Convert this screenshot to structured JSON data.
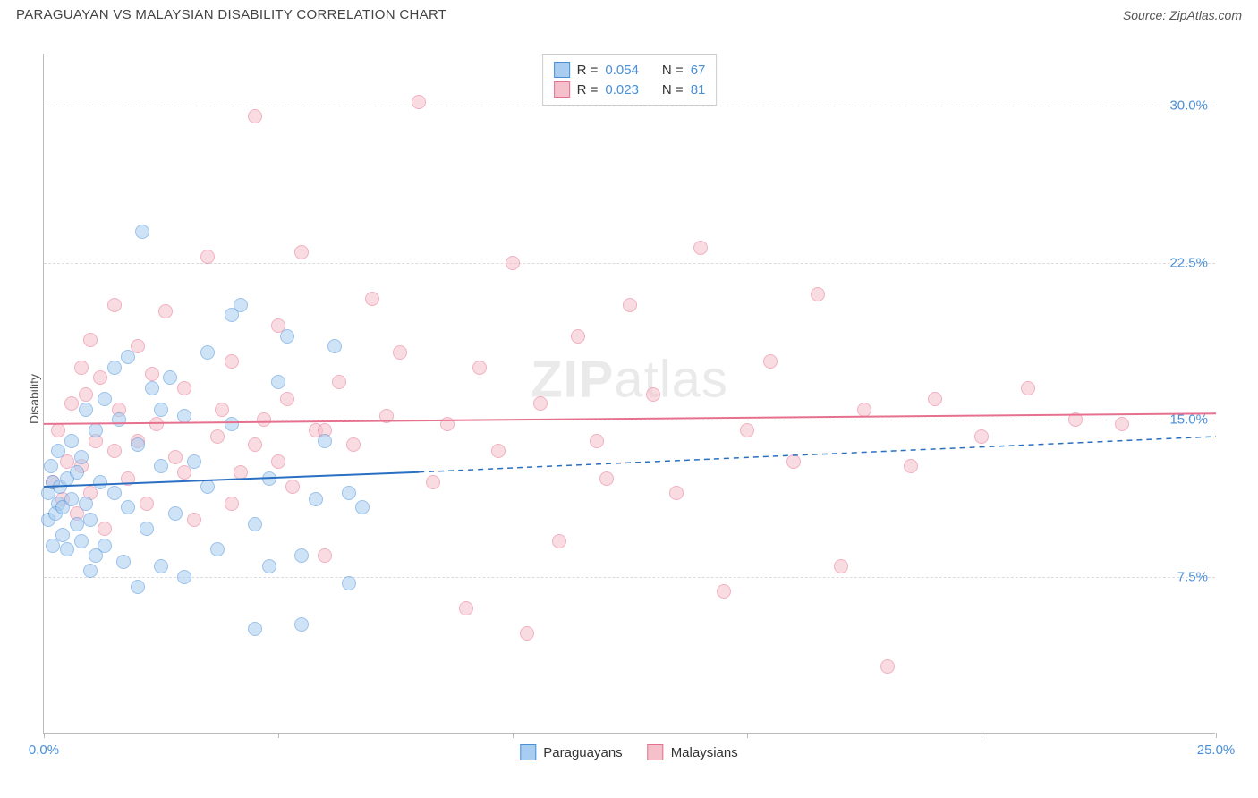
{
  "header": {
    "title": "PARAGUAYAN VS MALAYSIAN DISABILITY CORRELATION CHART",
    "source": "Source: ZipAtlas.com"
  },
  "watermark": {
    "bold": "ZIP",
    "rest": "atlas"
  },
  "chart": {
    "type": "scatter",
    "y_axis_label": "Disability",
    "background_color": "#ffffff",
    "grid_color": "#dddddd",
    "axis_color": "#bbbbbb",
    "tick_label_color": "#4a90d9",
    "xlim": [
      0,
      25
    ],
    "ylim": [
      0,
      32.5
    ],
    "x_ticks": [
      0,
      5,
      10,
      15,
      20,
      25
    ],
    "x_tick_labels": {
      "0": "0.0%",
      "25": "25.0%"
    },
    "y_gridlines": [
      7.5,
      15.0,
      22.5,
      30.0
    ],
    "y_tick_labels": [
      "7.5%",
      "15.0%",
      "22.5%",
      "30.0%"
    ],
    "marker_radius": 8,
    "marker_opacity": 0.55,
    "series": {
      "paraguayans": {
        "label": "Paraguayans",
        "fill": "#a8cdf0",
        "stroke": "#4a90d9",
        "r_value": "0.054",
        "n_value": "67",
        "trend": {
          "solid_x": [
            0,
            8
          ],
          "solid_y": [
            11.8,
            12.5
          ],
          "dashed_to_x": 25,
          "dashed_to_y": 14.2,
          "color": "#2a70c2",
          "width": 2
        },
        "points": [
          [
            0.1,
            11.5
          ],
          [
            0.1,
            10.2
          ],
          [
            0.2,
            9.0
          ],
          [
            0.2,
            12.0
          ],
          [
            0.3,
            11.0
          ],
          [
            0.3,
            13.5
          ],
          [
            0.15,
            12.8
          ],
          [
            0.25,
            10.5
          ],
          [
            0.35,
            11.8
          ],
          [
            0.4,
            9.5
          ],
          [
            0.4,
            10.8
          ],
          [
            0.5,
            12.2
          ],
          [
            0.5,
            8.8
          ],
          [
            0.6,
            11.2
          ],
          [
            0.6,
            14.0
          ],
          [
            0.7,
            10.0
          ],
          [
            0.7,
            12.5
          ],
          [
            0.8,
            9.2
          ],
          [
            0.8,
            13.2
          ],
          [
            0.9,
            15.5
          ],
          [
            0.9,
            11.0
          ],
          [
            1.0,
            7.8
          ],
          [
            1.0,
            10.2
          ],
          [
            1.1,
            14.5
          ],
          [
            1.1,
            8.5
          ],
          [
            1.2,
            12.0
          ],
          [
            1.3,
            16.0
          ],
          [
            1.3,
            9.0
          ],
          [
            1.5,
            17.5
          ],
          [
            1.5,
            11.5
          ],
          [
            1.6,
            15.0
          ],
          [
            1.7,
            8.2
          ],
          [
            1.8,
            18.0
          ],
          [
            2.0,
            7.0
          ],
          [
            2.0,
            13.8
          ],
          [
            2.1,
            24.0
          ],
          [
            2.2,
            9.8
          ],
          [
            2.3,
            16.5
          ],
          [
            2.5,
            8.0
          ],
          [
            2.5,
            12.8
          ],
          [
            2.7,
            17.0
          ],
          [
            2.8,
            10.5
          ],
          [
            3.0,
            15.2
          ],
          [
            3.0,
            7.5
          ],
          [
            3.2,
            13.0
          ],
          [
            3.5,
            18.2
          ],
          [
            3.7,
            8.8
          ],
          [
            4.0,
            14.8
          ],
          [
            4.2,
            20.5
          ],
          [
            4.5,
            10.0
          ],
          [
            4.5,
            5.0
          ],
          [
            4.8,
            12.2
          ],
          [
            5.0,
            16.8
          ],
          [
            5.2,
            19.0
          ],
          [
            5.5,
            8.5
          ],
          [
            5.8,
            11.2
          ],
          [
            6.0,
            14.0
          ],
          [
            6.2,
            18.5
          ],
          [
            6.5,
            7.2
          ],
          [
            6.8,
            10.8
          ],
          [
            4.0,
            20.0
          ],
          [
            2.5,
            15.5
          ],
          [
            1.8,
            10.8
          ],
          [
            3.5,
            11.8
          ],
          [
            4.8,
            8.0
          ],
          [
            5.5,
            5.2
          ],
          [
            6.5,
            11.5
          ]
        ]
      },
      "malaysians": {
        "label": "Malaysians",
        "fill": "#f5c0cb",
        "stroke": "#e6718f",
        "r_value": "0.023",
        "n_value": "81",
        "trend": {
          "solid_x": [
            0,
            25
          ],
          "solid_y": [
            14.8,
            15.3
          ],
          "color": "#e6718f",
          "width": 2
        },
        "points": [
          [
            0.2,
            12.0
          ],
          [
            0.3,
            14.5
          ],
          [
            0.4,
            11.2
          ],
          [
            0.5,
            13.0
          ],
          [
            0.6,
            15.8
          ],
          [
            0.7,
            10.5
          ],
          [
            0.8,
            12.8
          ],
          [
            0.9,
            16.2
          ],
          [
            1.0,
            11.5
          ],
          [
            1.1,
            14.0
          ],
          [
            1.2,
            17.0
          ],
          [
            1.3,
            9.8
          ],
          [
            1.5,
            13.5
          ],
          [
            1.6,
            15.5
          ],
          [
            1.8,
            12.2
          ],
          [
            2.0,
            18.5
          ],
          [
            2.2,
            11.0
          ],
          [
            2.4,
            14.8
          ],
          [
            2.6,
            20.2
          ],
          [
            2.8,
            13.2
          ],
          [
            3.0,
            16.5
          ],
          [
            3.2,
            10.2
          ],
          [
            3.5,
            22.8
          ],
          [
            3.7,
            14.2
          ],
          [
            4.0,
            17.8
          ],
          [
            4.2,
            12.5
          ],
          [
            4.5,
            29.5
          ],
          [
            4.7,
            15.0
          ],
          [
            5.0,
            19.5
          ],
          [
            5.3,
            11.8
          ],
          [
            5.5,
            23.0
          ],
          [
            5.8,
            14.5
          ],
          [
            6.0,
            8.5
          ],
          [
            6.3,
            16.8
          ],
          [
            6.6,
            13.8
          ],
          [
            7.0,
            20.8
          ],
          [
            7.3,
            15.2
          ],
          [
            7.6,
            18.2
          ],
          [
            8.0,
            30.2
          ],
          [
            8.3,
            12.0
          ],
          [
            8.6,
            14.8
          ],
          [
            9.0,
            6.0
          ],
          [
            9.3,
            17.5
          ],
          [
            9.7,
            13.5
          ],
          [
            10.0,
            22.5
          ],
          [
            10.3,
            4.8
          ],
          [
            10.6,
            15.8
          ],
          [
            11.0,
            9.2
          ],
          [
            11.4,
            19.0
          ],
          [
            11.8,
            14.0
          ],
          [
            12.0,
            12.2
          ],
          [
            12.5,
            20.5
          ],
          [
            13.0,
            16.2
          ],
          [
            13.5,
            11.5
          ],
          [
            14.0,
            23.2
          ],
          [
            14.5,
            6.8
          ],
          [
            15.0,
            14.5
          ],
          [
            15.5,
            17.8
          ],
          [
            16.0,
            13.0
          ],
          [
            16.5,
            21.0
          ],
          [
            17.0,
            8.0
          ],
          [
            17.5,
            15.5
          ],
          [
            18.0,
            3.2
          ],
          [
            18.5,
            12.8
          ],
          [
            19.0,
            16.0
          ],
          [
            20.0,
            14.2
          ],
          [
            21.0,
            16.5
          ],
          [
            22.0,
            15.0
          ],
          [
            23.0,
            14.8
          ],
          [
            2.0,
            14.0
          ],
          [
            3.0,
            12.5
          ],
          [
            4.0,
            11.0
          ],
          [
            5.0,
            13.0
          ],
          [
            6.0,
            14.5
          ],
          [
            1.5,
            20.5
          ],
          [
            2.3,
            17.2
          ],
          [
            3.8,
            15.5
          ],
          [
            4.5,
            13.8
          ],
          [
            5.2,
            16.0
          ],
          [
            1.0,
            18.8
          ],
          [
            0.8,
            17.5
          ]
        ]
      }
    }
  }
}
